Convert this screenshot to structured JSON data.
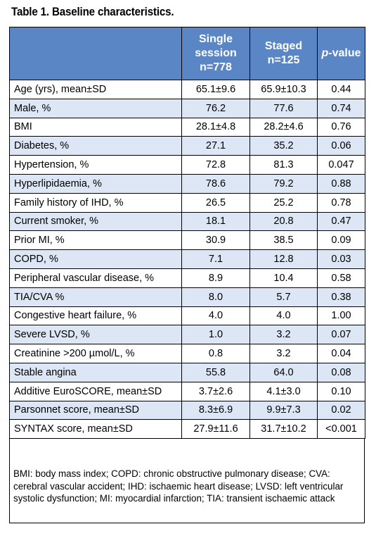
{
  "caption": "Table 1. Baseline characteristics.",
  "table": {
    "headers": {
      "single_line1": "Single",
      "single_line2": "session",
      "single_line3": "n=778",
      "staged_line1": "Staged",
      "staged_line2": "n=125",
      "pvalue_italic": "p",
      "pvalue_rest": "-value"
    },
    "rows": [
      {
        "label": "Age (yrs), mean±SD",
        "single": "65.1±9.6",
        "staged": "65.9±10.3",
        "p": "0.44"
      },
      {
        "label": "Male, %",
        "single": "76.2",
        "staged": "77.6",
        "p": "0.74"
      },
      {
        "label": "BMI",
        "single": "28.1±4.8",
        "staged": "28.2±4.6",
        "p": "0.76"
      },
      {
        "label": "Diabetes, %",
        "single": "27.1",
        "staged": "35.2",
        "p": "0.06"
      },
      {
        "label": "Hypertension, %",
        "single": "72.8",
        "staged": "81.3",
        "p": "0.047"
      },
      {
        "label": "Hyperlipidaemia, %",
        "single": "78.6",
        "staged": "79.2",
        "p": "0.88"
      },
      {
        "label": "Family history of IHD, %",
        "single": "26.5",
        "staged": "25.2",
        "p": "0.78"
      },
      {
        "label": "Current smoker, %",
        "single": "18.1",
        "staged": "20.8",
        "p": "0.47"
      },
      {
        "label": "Prior MI, %",
        "single": "30.9",
        "staged": "38.5",
        "p": "0.09"
      },
      {
        "label": "COPD, %",
        "single": "7.1",
        "staged": "12.8",
        "p": "0.03"
      },
      {
        "label": "Peripheral vascular disease, %",
        "single": "8.9",
        "staged": "10.4",
        "p": "0.58"
      },
      {
        "label": "TIA/CVA %",
        "single": "8.0",
        "staged": "5.7",
        "p": "0.38"
      },
      {
        "label": "Congestive heart failure, %",
        "single": "4.0",
        "staged": "4.0",
        "p": "1.00"
      },
      {
        "label": "Severe LVSD, %",
        "single": "1.0",
        "staged": "3.2",
        "p": "0.07"
      },
      {
        "label": "Creatinine >200 µmol/L, %",
        "single": "0.8",
        "staged": "3.2",
        "p": "0.04"
      },
      {
        "label": "Stable angina",
        "single": "55.8",
        "staged": "64.0",
        "p": "0.08"
      },
      {
        "label": "Additive EuroSCORE, mean±SD",
        "single": "3.7±2.6",
        "staged": "4.1±3.0",
        "p": "0.10"
      },
      {
        "label": "Parsonnet score, mean±SD",
        "single": "8.3±6.9",
        "staged": "9.9±7.3",
        "p": "0.02"
      },
      {
        "label": "SYNTAX score, mean±SD",
        "single": "27.9±11.6",
        "staged": "31.7±10.2",
        "p": "<0.001"
      }
    ]
  },
  "footnote": "BMI: body mass index; COPD: chronic obstructive pulmonary disease; CVA: cerebral vascular accident; IHD: ischaemic heart disease; LVSD: left ventricular systolic dysfunction; MI: myocardial infarction; TIA: transient ischaemic attack",
  "colors": {
    "header_bg": "#5b86c5",
    "stripe_bg": "#dde6f4",
    "border": "#000000"
  }
}
